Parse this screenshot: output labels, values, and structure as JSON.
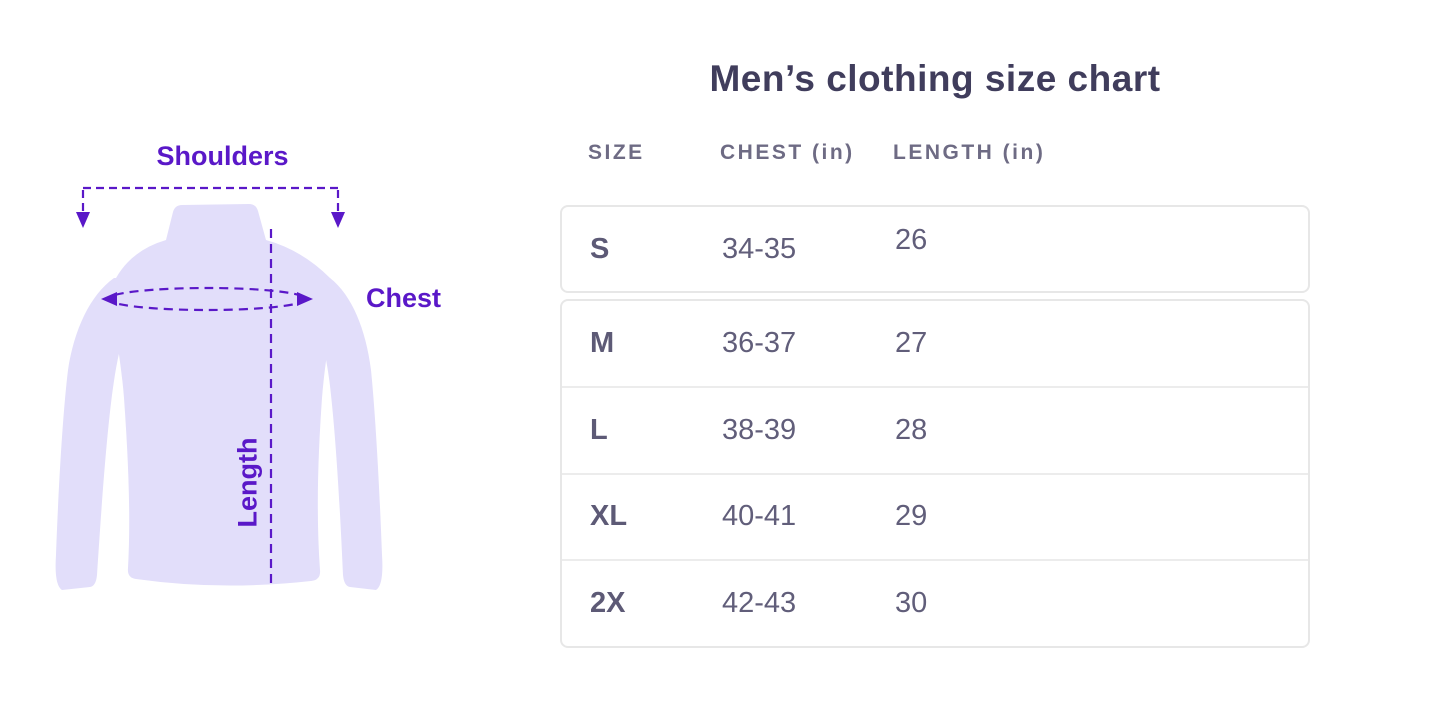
{
  "title": "Men’s clothing size chart",
  "colors": {
    "accent-purple": "#5a18c8",
    "shirt-fill": "#e2defa",
    "title-text": "#403d5c",
    "header-text": "#6e6b84",
    "cell-text": "#5d5a76",
    "value-text": "#615e7a",
    "table-border": "#e7e7e7",
    "page-bg": "#ffffff"
  },
  "diagram": {
    "shoulders_label": "Shoulders",
    "chest_label": "Chest",
    "length_label": "Length"
  },
  "table": {
    "headers": [
      "SIZE",
      "CHEST (in)",
      "LENGTH (in)"
    ],
    "rows": [
      {
        "size": "S",
        "chest": "34-35",
        "length": "26"
      },
      {
        "size": "M",
        "chest": "36-37",
        "length": "27"
      },
      {
        "size": "L",
        "chest": "38-39",
        "length": "28"
      },
      {
        "size": "XL",
        "chest": "40-41",
        "length": "29"
      },
      {
        "size": "2X",
        "chest": "42-43",
        "length": "30"
      }
    ]
  },
  "chart_data": {
    "type": "table",
    "title": "Men’s clothing size chart",
    "columns": [
      "SIZE",
      "CHEST (in)",
      "LENGTH (in)"
    ],
    "rows": [
      [
        "S",
        "34-35",
        "26"
      ],
      [
        "M",
        "36-37",
        "27"
      ],
      [
        "L",
        "38-39",
        "28"
      ],
      [
        "XL",
        "40-41",
        "29"
      ],
      [
        "2X",
        "42-43",
        "30"
      ]
    ]
  }
}
